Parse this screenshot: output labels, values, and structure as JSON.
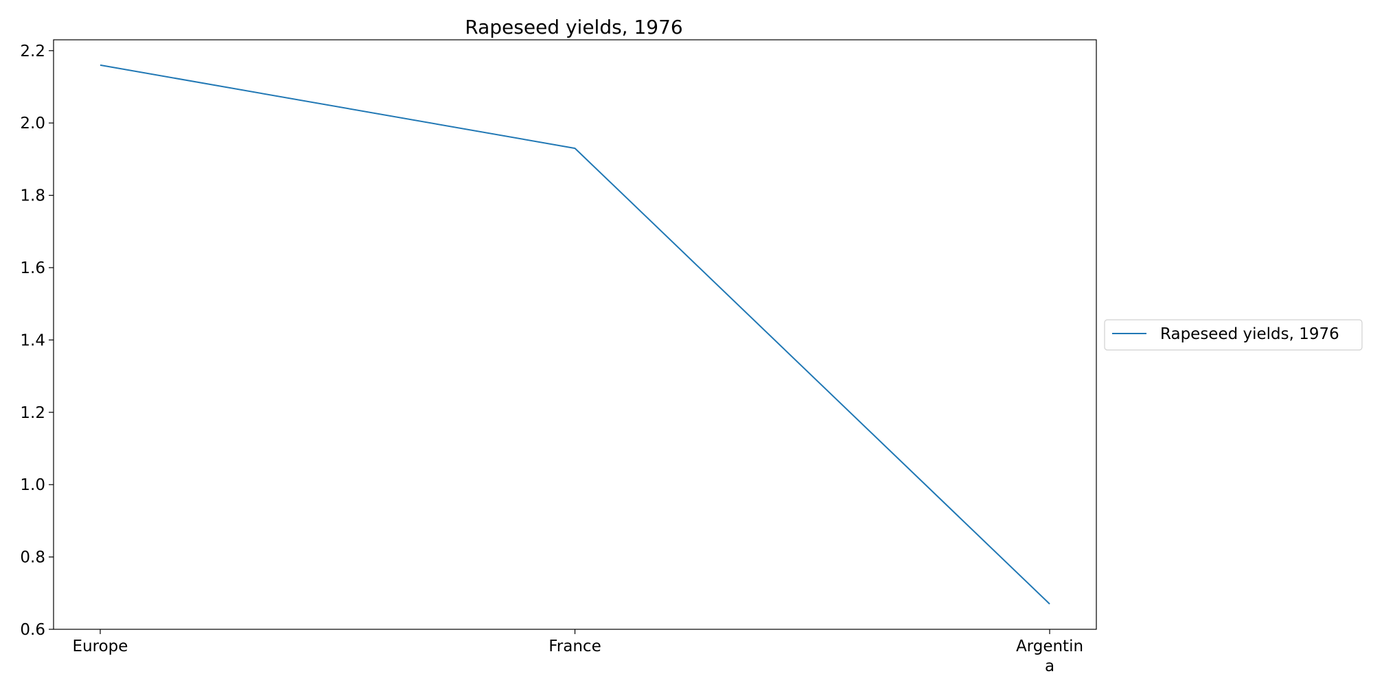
{
  "chart_data": {
    "type": "line",
    "title": "Rapeseed yields, 1976",
    "xlabel": "",
    "ylabel": "",
    "categories": [
      "Europe",
      "France",
      "Argentina"
    ],
    "category_labels": [
      [
        "Europe"
      ],
      [
        "France"
      ],
      [
        "Argentin",
        "a"
      ]
    ],
    "series": [
      {
        "name": "Rapeseed yields, 1976",
        "values": [
          2.16,
          1.93,
          0.67
        ],
        "color": "#1f77b4"
      }
    ],
    "ylim": [
      0.6,
      2.23
    ],
    "yticks": [
      0.6,
      0.8,
      1.0,
      1.2,
      1.4,
      1.6,
      1.8,
      2.0,
      2.2
    ],
    "ytick_labels": [
      "0.6",
      "0.8",
      "1.0",
      "1.2",
      "1.4",
      "1.6",
      "1.8",
      "2.0",
      "2.2"
    ],
    "grid": false,
    "legend_position": "right"
  }
}
